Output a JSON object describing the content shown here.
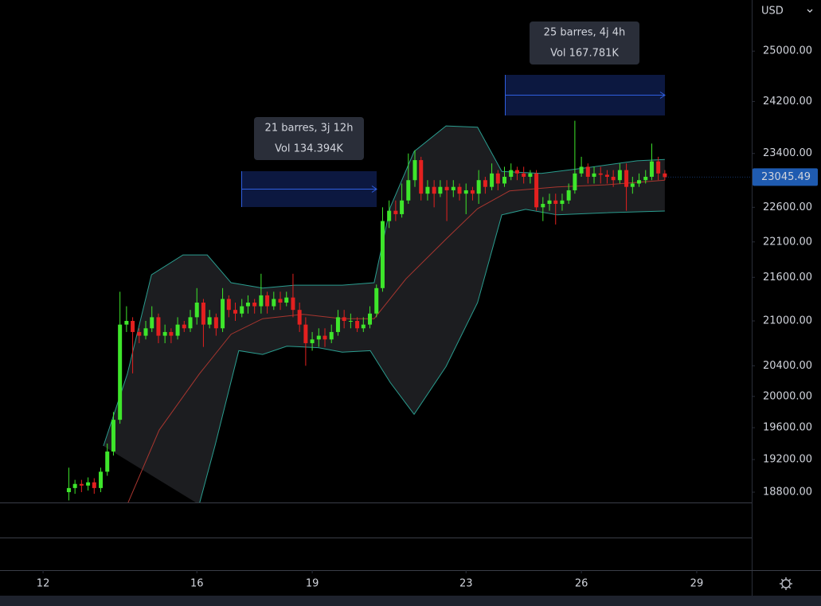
{
  "chart_data": {
    "type": "candlestick",
    "currency": "USD",
    "log_scale": true,
    "up_color": "#3ee62b",
    "down_color": "#e3201f",
    "xlim": [
      10.88,
      30.43
    ],
    "xticks": [
      12,
      16,
      19,
      23,
      26,
      29
    ],
    "ylim": [
      18675,
      25840
    ],
    "yticks": [
      {
        "value": 18800,
        "label": "18800.00"
      },
      {
        "value": 19200,
        "label": "19200.00"
      },
      {
        "value": 19600,
        "label": "19600.00"
      },
      {
        "value": 20000,
        "label": "20000.00"
      },
      {
        "value": 20400,
        "label": "20400.00"
      },
      {
        "value": 21000,
        "label": "21000.00"
      },
      {
        "value": 21600,
        "label": "21600.00"
      },
      {
        "value": 22100,
        "label": "22100.00"
      },
      {
        "value": 22600,
        "label": "22600.00"
      },
      {
        "value": 23400,
        "label": "23400.00"
      },
      {
        "value": 24200,
        "label": "24200.00"
      },
      {
        "value": 25000,
        "label": "25000.00"
      }
    ],
    "x": [
      12.67,
      12.83,
      13,
      13.17,
      13.33,
      13.5,
      13.67,
      13.83,
      14,
      14.17,
      14.33,
      14.5,
      14.67,
      14.83,
      15,
      15.17,
      15.33,
      15.5,
      15.67,
      15.83,
      16,
      16.17,
      16.33,
      16.5,
      16.67,
      16.83,
      17,
      17.17,
      17.33,
      17.5,
      17.67,
      17.83,
      18,
      18.17,
      18.33,
      18.5,
      18.67,
      18.83,
      19,
      19.17,
      19.33,
      19.5,
      19.67,
      19.83,
      20,
      20.17,
      20.33,
      20.5,
      20.67,
      20.83,
      21,
      21.17,
      21.33,
      21.5,
      21.67,
      21.83,
      22,
      22.17,
      22.33,
      22.5,
      22.67,
      22.83,
      23,
      23.17,
      23.33,
      23.5,
      23.67,
      23.83,
      24,
      24.17,
      24.33,
      24.5,
      24.67,
      24.83,
      25,
      25.17,
      25.33,
      25.5,
      25.67,
      25.83,
      26,
      26.17,
      26.33,
      26.5,
      26.67,
      26.83,
      27,
      27.17,
      27.33,
      27.5,
      27.67,
      27.83,
      28,
      28.17
    ],
    "open": [
      18800,
      18850,
      18900,
      18880,
      18920,
      18850,
      19050,
      19300,
      19700,
      20950,
      21000,
      20850,
      20800,
      20900,
      21050,
      20800,
      20850,
      20800,
      20950,
      20900,
      21050,
      21250,
      20950,
      21050,
      20900,
      21300,
      21150,
      21100,
      21200,
      21250,
      21200,
      21350,
      21200,
      21300,
      21250,
      21320,
      21150,
      20950,
      20700,
      20750,
      20800,
      20750,
      20850,
      21050,
      21000,
      21000,
      20900,
      20950,
      21100,
      21450,
      22400,
      22550,
      22500,
      22700,
      23000,
      23300,
      22800,
      22900,
      22800,
      22900,
      22850,
      22900,
      22800,
      22850,
      22800,
      23000,
      22900,
      23100,
      22950,
      23050,
      23150,
      23100,
      23050,
      23100,
      22600,
      22650,
      22700,
      22650,
      22700,
      22850,
      23100,
      23200,
      23050,
      23100,
      23080,
      23050,
      23000,
      23150,
      22900,
      22950,
      23000,
      23050,
      23280,
      23100
    ],
    "high": [
      19100,
      18950,
      18950,
      18980,
      18970,
      19100,
      19400,
      19800,
      21400,
      21200,
      21050,
      20900,
      21000,
      21200,
      21100,
      20950,
      20900,
      21050,
      21000,
      21150,
      21450,
      21300,
      21150,
      21100,
      21450,
      21350,
      21250,
      21300,
      21350,
      21300,
      21650,
      21400,
      21400,
      21400,
      21400,
      21650,
      21250,
      21050,
      20850,
      20900,
      20900,
      20950,
      21150,
      21150,
      21100,
      21050,
      21050,
      21200,
      21500,
      22600,
      22700,
      22700,
      22950,
      23400,
      23450,
      23350,
      23000,
      23000,
      23000,
      23000,
      23000,
      22950,
      22950,
      22900,
      23150,
      23050,
      23250,
      23150,
      23200,
      23250,
      23200,
      23200,
      23150,
      23150,
      22750,
      22800,
      22800,
      22800,
      22950,
      23900,
      23350,
      23250,
      23200,
      23200,
      23150,
      23150,
      23250,
      23250,
      23050,
      23100,
      23150,
      23550,
      23350,
      23150
    ],
    "low": [
      18700,
      18780,
      18800,
      18820,
      18780,
      18800,
      19000,
      19250,
      19650,
      20850,
      20300,
      20700,
      20750,
      20850,
      20700,
      20700,
      20700,
      20750,
      20850,
      20850,
      20950,
      20650,
      20900,
      20800,
      20850,
      21050,
      21000,
      21050,
      21100,
      21100,
      21100,
      21100,
      21150,
      21150,
      21200,
      21050,
      20850,
      20400,
      20600,
      20650,
      20650,
      20700,
      20800,
      20900,
      20900,
      20850,
      20850,
      20900,
      21050,
      21400,
      22300,
      22400,
      22450,
      22650,
      22900,
      22700,
      22700,
      22600,
      22750,
      22400,
      22750,
      22700,
      22500,
      22700,
      22650,
      22800,
      22850,
      22850,
      22900,
      23000,
      23000,
      22950,
      22950,
      22550,
      22400,
      22550,
      22350,
      22550,
      22650,
      22800,
      23050,
      22950,
      22950,
      22950,
      22950,
      22900,
      22950,
      22550,
      22800,
      22900,
      22950,
      23000,
      23000,
      23000
    ],
    "close": [
      18850,
      18900,
      18880,
      18920,
      18850,
      19050,
      19300,
      19700,
      20950,
      21000,
      20850,
      20800,
      20900,
      21050,
      20800,
      20850,
      20800,
      20950,
      20900,
      21050,
      21250,
      20950,
      21050,
      20900,
      21300,
      21150,
      21100,
      21200,
      21250,
      21200,
      21350,
      21200,
      21300,
      21250,
      21320,
      21150,
      20950,
      20700,
      20750,
      20800,
      20750,
      20850,
      21050,
      21000,
      21000,
      20900,
      20950,
      21100,
      21450,
      22400,
      22550,
      22500,
      22700,
      23000,
      23300,
      22800,
      22900,
      22800,
      22900,
      22850,
      22900,
      22800,
      22850,
      22800,
      23000,
      22900,
      23100,
      22950,
      23050,
      23150,
      23100,
      23050,
      23100,
      22600,
      22650,
      22700,
      22650,
      22700,
      22850,
      23100,
      23200,
      23050,
      23100,
      23080,
      23050,
      23000,
      23150,
      22900,
      22950,
      23000,
      23050,
      23280,
      23100,
      23045
    ],
    "bands": {
      "line_color": "#2a9d8f",
      "fill": "#1c1d20",
      "middle_color": "#a8362f",
      "upper": {
        "x": [
          13.57,
          14.19,
          14.82,
          15.64,
          16.27,
          16.89,
          17.71,
          18.54,
          19.78,
          20.61,
          21.03,
          21.65,
          22.48,
          23.3,
          23.93,
          24.96,
          26.2,
          27.45,
          28.17
        ],
        "values": [
          19370,
          20290,
          21635,
          21915,
          21915,
          21525,
          21450,
          21490,
          21490,
          21525,
          22600,
          23430,
          23820,
          23800,
          23130,
          23100,
          23190,
          23290,
          23310
        ]
      },
      "middle": {
        "x": [
          14.19,
          15.02,
          16.06,
          16.89,
          17.71,
          18.75,
          19.78,
          20.61,
          21.44,
          22.48,
          23.3,
          24.13,
          25.37,
          26.62,
          28.17
        ],
        "values": [
          18650,
          19570,
          20290,
          20820,
          21030,
          21090,
          21030,
          21030,
          21580,
          22140,
          22580,
          22840,
          22900,
          22930,
          23000
        ]
      },
      "lower": {
        "x": [
          16.06,
          16.47,
          17.09,
          17.71,
          18.34,
          19.16,
          19.78,
          20.51,
          21.03,
          21.65,
          22.48,
          23.3,
          23.93,
          24.55,
          25.37,
          26.62,
          28.17
        ],
        "values": [
          18650,
          19370,
          20600,
          20550,
          20660,
          20640,
          20580,
          20600,
          20180,
          19770,
          20390,
          21250,
          22490,
          22570,
          22490,
          22520,
          22545
        ]
      }
    },
    "last_price": 23045.49,
    "last_price_color": "#1f5bb0",
    "measures": [
      {
        "lines": [
          "21 barres, 3j 12h",
          "Vol 134.394K"
        ]
      },
      {
        "lines": [
          "25 barres, 4j 4h",
          "Vol 167.781K"
        ]
      }
    ]
  }
}
